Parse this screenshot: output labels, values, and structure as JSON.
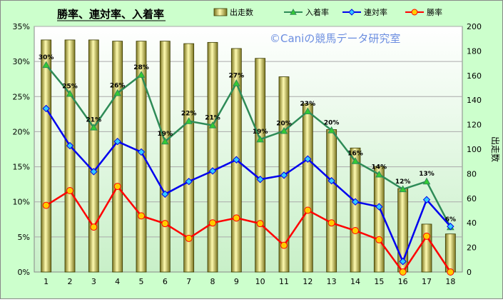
{
  "colors": {
    "outer_bg": "#ccffcc",
    "plot_bg_top": "#ffffff",
    "plot_bg_bottom": "#c8f0c8",
    "bar_fill_light": "#fffbb0",
    "bar_fill_dark": "#7a7420",
    "bar_stroke": "#3a3a00",
    "show_line": "#2e8b57",
    "show_marker": "#33cc33",
    "place_line": "#0000ee",
    "place_marker": "#33ccff",
    "win_line": "#ff0000",
    "win_marker": "#ffcc00",
    "watermark": "#6b8de0"
  },
  "chart_data": {
    "type": "bar+line",
    "title": "勝率、連対率、入着率",
    "watermark": "©Caniの競馬データ研究室",
    "categories": [
      "1",
      "2",
      "3",
      "4",
      "5",
      "6",
      "7",
      "8",
      "9",
      "10",
      "11",
      "12",
      "13",
      "14",
      "15",
      "16",
      "17",
      "18"
    ],
    "y_left": {
      "ticks": [
        "0%",
        "5%",
        "10%",
        "15%",
        "20%",
        "25%",
        "30%",
        "35%"
      ],
      "range": [
        0,
        35
      ]
    },
    "y_right": {
      "label": "出走数",
      "ticks": [
        "0",
        "20",
        "40",
        "60",
        "80",
        "100",
        "120",
        "140",
        "160",
        "180",
        "200"
      ],
      "range": [
        0,
        200
      ]
    },
    "legend": {
      "position": "top",
      "items": [
        "出走数",
        "入着率",
        "連対率",
        "勝率"
      ]
    },
    "series": [
      {
        "name": "出走数",
        "type": "bar",
        "axis": "right",
        "values": [
          189,
          189,
          189,
          188,
          188,
          188,
          186,
          187,
          182,
          174,
          159,
          137,
          116,
          101,
          86,
          68,
          39,
          31
        ]
      },
      {
        "name": "入着率",
        "type": "line",
        "axis": "left",
        "values": [
          29.5,
          25.4,
          20.6,
          25.5,
          28.1,
          18.6,
          21.5,
          20.9,
          26.9,
          18.9,
          20.1,
          22.9,
          20.2,
          15.8,
          13.9,
          11.8,
          12.9,
          6.4
        ],
        "data_labels": [
          "30%",
          "25%",
          "21%",
          "26%",
          "28%",
          "19%",
          "22%",
          "21%",
          "27%",
          "19%",
          "20%",
          "23%",
          "20%",
          "16%",
          "14%",
          "12%",
          "13%",
          "6%"
        ]
      },
      {
        "name": "連対率",
        "type": "line",
        "axis": "left",
        "values": [
          23.3,
          18.0,
          14.3,
          18.6,
          17.1,
          11.1,
          12.9,
          14.4,
          16.0,
          13.2,
          13.8,
          16.1,
          13.0,
          10.0,
          9.3,
          1.5,
          10.3,
          6.5
        ]
      },
      {
        "name": "勝率",
        "type": "line",
        "axis": "left",
        "values": [
          9.5,
          11.6,
          6.4,
          12.2,
          8.0,
          6.9,
          4.8,
          7.0,
          7.7,
          6.9,
          3.8,
          8.8,
          7.0,
          5.9,
          4.6,
          0.0,
          5.1,
          0.0
        ]
      }
    ]
  }
}
